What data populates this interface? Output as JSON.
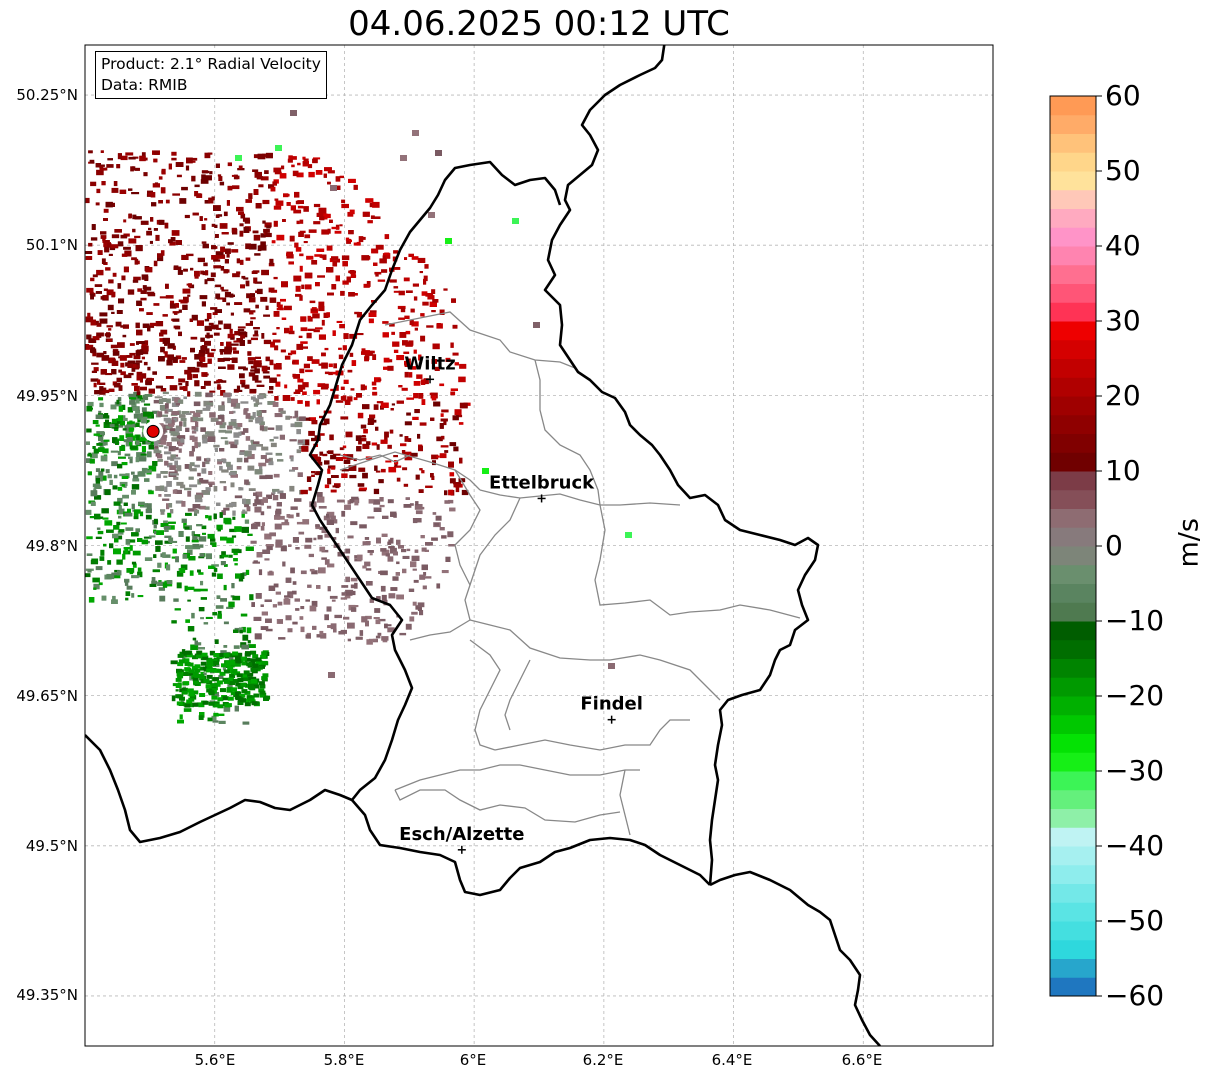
{
  "title": "04.06.2025 00:12 UTC",
  "info": {
    "product": "Product: 2.1° Radial Velocity",
    "data": "Data: RMIB"
  },
  "axes": {
    "lat_labels": [
      "50.25°N",
      "50.1°N",
      "49.95°N",
      "49.8°N",
      "49.65°N",
      "49.5°N",
      "49.35°N"
    ],
    "lon_labels": [
      "5.6°E",
      "5.8°E",
      "6°E",
      "6.2°E",
      "6.4°E",
      "6.6°E"
    ],
    "lat_range": [
      49.3,
      50.3
    ],
    "lon_range": [
      5.4,
      6.8
    ],
    "grid": true
  },
  "cities": [
    {
      "name": "Wiltz",
      "lat": 49.966,
      "lon": 5.932
    },
    {
      "name": "Ettelbruck",
      "lat": 49.847,
      "lon": 6.104
    },
    {
      "name": "Findel",
      "lat": 49.626,
      "lon": 6.212
    },
    {
      "name": "Esch/Alzette",
      "lat": 49.496,
      "lon": 5.981
    }
  ],
  "radar_site": {
    "lat": 49.914,
    "lon": 5.505
  },
  "colorbar": {
    "label": "m/s",
    "ticks": [
      "60",
      "50",
      "40",
      "30",
      "20",
      "10",
      "0",
      "−10",
      "−20",
      "−30",
      "−40",
      "−50",
      "−60"
    ],
    "min": -60,
    "max": 60,
    "colors": [
      "#1f77c0",
      "#27a6cc",
      "#2ed8dd",
      "#44dfe0",
      "#5ae4e4",
      "#73e8e8",
      "#8eeded",
      "#a6f0f0",
      "#bff3f3",
      "#8ef0a8",
      "#64f07c",
      "#3cf456",
      "#16ef16",
      "#04e204",
      "#00c800",
      "#00b000",
      "#009a00",
      "#008400",
      "#006e00",
      "#005d00",
      "#4f7a50",
      "#5a8460",
      "#6a8f6e",
      "#7d8579",
      "#877a7c",
      "#8e6c72",
      "#854f58",
      "#7c3c47",
      "#700000",
      "#800000",
      "#8f0000",
      "#9f0000",
      "#b00000",
      "#c20000",
      "#d50000",
      "#ee0000",
      "#ff3355",
      "#ff5577",
      "#ff6f90",
      "#ff84b0",
      "#ff94c8",
      "#ffaac0",
      "#ffc8b8",
      "#ffe29b",
      "#ffd68a",
      "#ffc27a",
      "#ffab68",
      "#ff9a55"
    ]
  }
}
